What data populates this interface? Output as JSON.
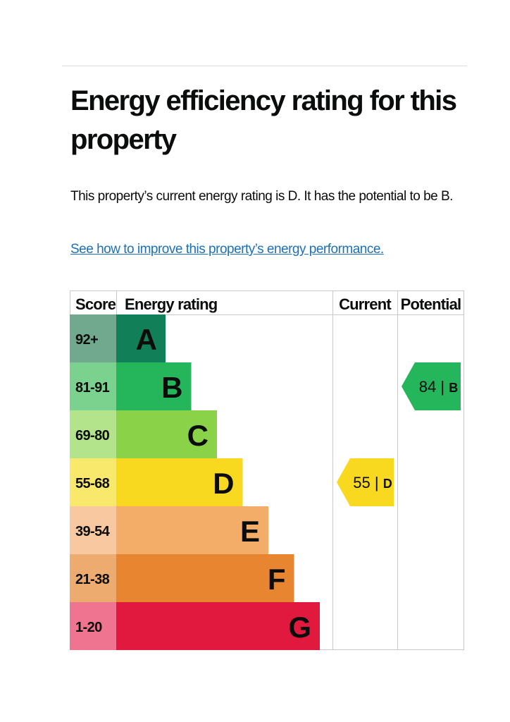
{
  "heading": "Energy efficiency rating for this property",
  "summary": "This property’s current energy rating is D. It has the potential to be B.",
  "improve_link": "See how to improve this property’s energy performance.",
  "chart_data": {
    "type": "bar",
    "headers": {
      "score": "Score",
      "rating": "Energy rating",
      "current": "Current",
      "potential": "Potential"
    },
    "categories": [
      "A",
      "B",
      "C",
      "D",
      "E",
      "F",
      "G"
    ],
    "score_ranges": [
      "92+",
      "81-91",
      "69-80",
      "55-68",
      "39-54",
      "21-38",
      "1-20"
    ],
    "colors": [
      "#117f58",
      "#25b55a",
      "#8ad349",
      "#f8d91f",
      "#f4ad68",
      "#e88531",
      "#e1193f"
    ],
    "score_colors": [
      "#70a98d",
      "#7bd28f",
      "#b3e48c",
      "#f8e86c",
      "#f8c9a0",
      "#eeab6f",
      "#ee7490"
    ],
    "current": {
      "score": 55,
      "band": "D",
      "label": "55 | D"
    },
    "potential": {
      "score": 84,
      "band": "B",
      "label": "84 | B"
    }
  }
}
